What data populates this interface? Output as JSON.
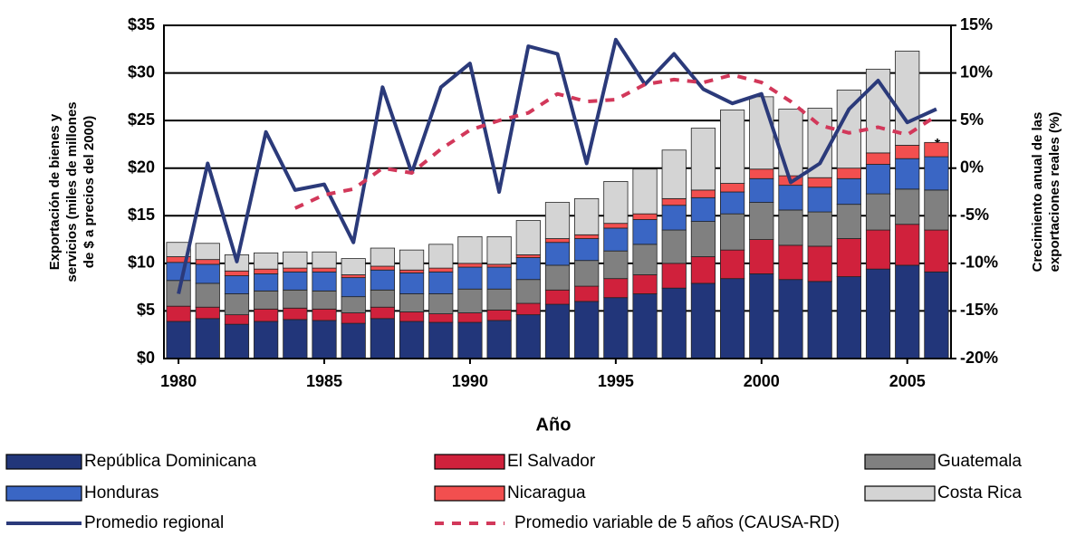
{
  "chart_data": {
    "type": "stacked_bar_line",
    "x_label": "Año",
    "y_label": [
      "Exportación de bienes y",
      "servicios (miles de millones",
      "de $ a precios del 2000)"
    ],
    "y2_label": [
      "Crecimiento anual de las",
      "exportaciones reales (%)"
    ],
    "annotation": "*",
    "x": [
      1980,
      1981,
      1982,
      1983,
      1984,
      1985,
      1986,
      1987,
      1988,
      1989,
      1990,
      1991,
      1992,
      1993,
      1994,
      1995,
      1996,
      1997,
      1998,
      1999,
      2000,
      2001,
      2002,
      2003,
      2004,
      2005,
      2006
    ],
    "xticks": [
      1980,
      1985,
      1990,
      1995,
      2000,
      2005
    ],
    "ylim": [
      0,
      35
    ],
    "yticks": [
      {
        "value": 0,
        "label": "$0"
      },
      {
        "value": 5,
        "label": "$5"
      },
      {
        "value": 10,
        "label": "$10"
      },
      {
        "value": 15,
        "label": "$15"
      },
      {
        "value": 20,
        "label": "$20"
      },
      {
        "value": 25,
        "label": "$25"
      },
      {
        "value": 30,
        "label": "$30"
      },
      {
        "value": 35,
        "label": "$35"
      }
    ],
    "y2lim": [
      -20,
      15
    ],
    "y2ticks": [
      {
        "value": -20,
        "label": "-20%"
      },
      {
        "value": -15,
        "label": "-15%"
      },
      {
        "value": -10,
        "label": "-10%"
      },
      {
        "value": -5,
        "label": "-5%"
      },
      {
        "value": 0,
        "label": "0%"
      },
      {
        "value": 5,
        "label": "5%"
      },
      {
        "value": 10,
        "label": "10%"
      },
      {
        "value": 15,
        "label": "15%"
      }
    ],
    "grid": true,
    "series": [
      {
        "name": "República Dominicana",
        "kind": "bar",
        "color": "#22367a",
        "values": [
          3.9,
          4.2,
          3.6,
          3.9,
          4.1,
          4.0,
          3.7,
          4.2,
          3.9,
          3.8,
          3.8,
          4.0,
          4.6,
          5.7,
          6.0,
          6.4,
          6.8,
          7.4,
          7.9,
          8.4,
          8.9,
          8.3,
          8.1,
          8.6,
          9.4,
          9.8,
          9.1
        ]
      },
      {
        "name": "El Salvador",
        "kind": "bar",
        "color": "#d0213c",
        "values": [
          1.6,
          1.2,
          1.0,
          1.3,
          1.2,
          1.2,
          1.1,
          1.2,
          1.0,
          0.9,
          1.0,
          1.1,
          1.2,
          1.5,
          1.6,
          2.0,
          2.0,
          2.6,
          2.8,
          3.0,
          3.6,
          3.6,
          3.7,
          4.0,
          4.1,
          4.3,
          4.4
        ]
      },
      {
        "name": "Guatemala",
        "kind": "bar",
        "color": "#808080",
        "values": [
          2.7,
          2.5,
          2.2,
          1.9,
          1.9,
          1.9,
          1.7,
          1.8,
          1.9,
          2.1,
          2.5,
          2.2,
          2.5,
          2.6,
          2.7,
          2.9,
          3.2,
          3.5,
          3.7,
          3.8,
          3.9,
          3.7,
          3.6,
          3.6,
          3.8,
          3.7,
          4.2
        ]
      },
      {
        "name": "Honduras",
        "kind": "bar",
        "color": "#3a66c4",
        "values": [
          1.9,
          2.0,
          1.9,
          1.8,
          1.9,
          2.0,
          2.0,
          2.1,
          2.2,
          2.3,
          2.3,
          2.3,
          2.3,
          2.4,
          2.3,
          2.4,
          2.6,
          2.6,
          2.5,
          2.3,
          2.5,
          2.6,
          2.6,
          2.7,
          3.1,
          3.2,
          3.5
        ]
      },
      {
        "name": "Nicaragua",
        "kind": "bar",
        "color": "#f24f4f",
        "values": [
          0.6,
          0.5,
          0.5,
          0.5,
          0.4,
          0.4,
          0.3,
          0.4,
          0.3,
          0.4,
          0.4,
          0.3,
          0.3,
          0.4,
          0.4,
          0.5,
          0.6,
          0.7,
          0.8,
          0.9,
          1.0,
          1.0,
          1.0,
          1.1,
          1.2,
          1.4,
          1.5
        ]
      },
      {
        "name": "Costa Rica",
        "kind": "bar",
        "color": "#d4d4d4",
        "values": [
          1.5,
          1.7,
          1.7,
          1.7,
          1.7,
          1.7,
          1.7,
          1.9,
          2.1,
          2.5,
          2.8,
          2.9,
          3.6,
          3.8,
          3.8,
          4.4,
          4.7,
          5.1,
          6.5,
          7.7,
          7.6,
          7.0,
          7.3,
          8.2,
          8.8,
          9.9,
          null
        ]
      },
      {
        "name": "Promedio regional",
        "kind": "line",
        "axis": "y2",
        "color": "#2b3a7a",
        "values": [
          -13.2,
          0.5,
          -9.8,
          3.8,
          -2.3,
          -1.7,
          -7.8,
          8.5,
          -0.5,
          8.5,
          11,
          -2.5,
          12.8,
          12,
          0.5,
          13.5,
          8.8,
          12,
          8.3,
          6.8,
          7.8,
          -1.5,
          0.5,
          6.2,
          9.2,
          4.8,
          6.2
        ]
      },
      {
        "name": "Promedio variable de 5 años (CAUSA-RD)",
        "kind": "dashed",
        "axis": "y2",
        "color": "#d2385a",
        "values": [
          null,
          null,
          null,
          null,
          -4.2,
          -2.8,
          -2.2,
          0,
          -0.5,
          2,
          4,
          5,
          5.8,
          7.8,
          7,
          7.2,
          8.8,
          9.3,
          9,
          9.8,
          9,
          7,
          4.5,
          3.7,
          4.3,
          3.5,
          5.5
        ]
      }
    ]
  }
}
